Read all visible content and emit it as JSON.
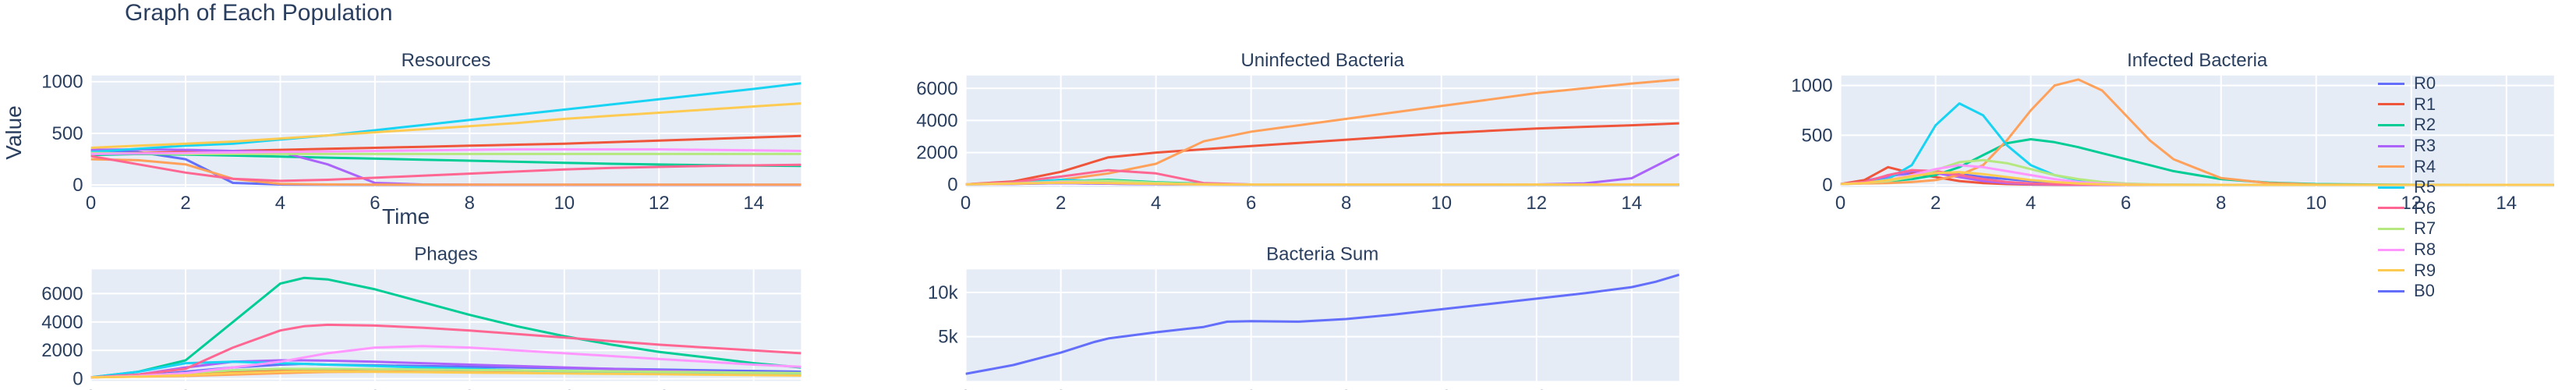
{
  "figure": {
    "title": "Graph of Each Population",
    "ylabel": "Value",
    "xlabel": "Time"
  },
  "legend": [
    {
      "name": "R0",
      "color": "#636efa"
    },
    {
      "name": "R1",
      "color": "#EF553B"
    },
    {
      "name": "R2",
      "color": "#00cc96"
    },
    {
      "name": "R3",
      "color": "#ab63fa"
    },
    {
      "name": "R4",
      "color": "#FFA15A"
    },
    {
      "name": "R5",
      "color": "#19d3f3"
    },
    {
      "name": "R6",
      "color": "#FF6692"
    },
    {
      "name": "R7",
      "color": "#B6E880"
    },
    {
      "name": "R8",
      "color": "#FF97FF"
    },
    {
      "name": "R9",
      "color": "#FECB52"
    },
    {
      "name": "B0",
      "color": "#636efa"
    }
  ],
  "chart_data": [
    {
      "type": "line",
      "title": "Resources",
      "xlim": [
        0,
        15
      ],
      "ylim": [
        -20,
        1060
      ],
      "xticks": [
        0,
        2,
        4,
        6,
        8,
        10,
        12,
        14
      ],
      "yticks": [
        0,
        500,
        1000
      ],
      "ytick_labels": [
        "0",
        "500",
        "1000"
      ],
      "x": [
        0,
        1,
        2,
        3,
        4,
        5,
        6,
        7,
        8,
        9,
        10,
        11,
        12,
        13,
        14,
        15
      ],
      "series": [
        {
          "color": "#636efa",
          "values": [
            330,
            320,
            250,
            20,
            5,
            3,
            2,
            2,
            2,
            2,
            2,
            2,
            2,
            2,
            2,
            2
          ]
        },
        {
          "color": "#EF553B",
          "values": [
            300,
            310,
            320,
            330,
            340,
            350,
            360,
            370,
            380,
            390,
            400,
            415,
            430,
            445,
            460,
            475
          ]
        },
        {
          "color": "#00cc96",
          "values": [
            290,
            300,
            295,
            285,
            275,
            265,
            255,
            245,
            235,
            225,
            215,
            205,
            198,
            192,
            188,
            185
          ]
        },
        {
          "color": "#ab63fa",
          "values": [
            340,
            345,
            340,
            330,
            320,
            200,
            20,
            5,
            3,
            2,
            2,
            2,
            2,
            2,
            2,
            2
          ]
        },
        {
          "color": "#FFA15A",
          "values": [
            250,
            240,
            200,
            60,
            10,
            5,
            3,
            3,
            3,
            3,
            3,
            3,
            3,
            3,
            3,
            3
          ]
        },
        {
          "color": "#19d3f3",
          "values": [
            320,
            350,
            380,
            400,
            440,
            480,
            530,
            580,
            630,
            680,
            730,
            780,
            830,
            880,
            930,
            985
          ]
        },
        {
          "color": "#FF6692",
          "values": [
            280,
            200,
            120,
            60,
            40,
            50,
            70,
            90,
            110,
            130,
            150,
            165,
            175,
            185,
            190,
            195
          ]
        },
        {
          "color": "#B6E880",
          "values": [
            310,
            305,
            300,
            300,
            300,
            300,
            300,
            300,
            300,
            300,
            300,
            300,
            300,
            300,
            300,
            300
          ]
        },
        {
          "color": "#FF97FF",
          "values": [
            300,
            305,
            310,
            315,
            320,
            325,
            330,
            335,
            340,
            345,
            345,
            345,
            345,
            340,
            335,
            330
          ]
        },
        {
          "color": "#FECB52",
          "values": [
            360,
            380,
            400,
            420,
            450,
            480,
            510,
            540,
            570,
            600,
            640,
            670,
            700,
            730,
            760,
            790
          ]
        }
      ]
    },
    {
      "type": "line",
      "title": "Uninfected Bacteria",
      "xlim": [
        0,
        15
      ],
      "ylim": [
        -150,
        6800
      ],
      "xticks": [
        0,
        2,
        4,
        6,
        8,
        10,
        12,
        14
      ],
      "yticks": [
        0,
        2000,
        4000,
        6000
      ],
      "ytick_labels": [
        "0",
        "2000",
        "4000",
        "6000"
      ],
      "x": [
        0,
        1,
        2,
        3,
        4,
        5,
        6,
        7,
        8,
        9,
        10,
        11,
        12,
        13,
        14,
        15
      ],
      "series": [
        {
          "color": "#636efa",
          "values": [
            20,
            50,
            100,
            60,
            20,
            10,
            5,
            5,
            5,
            5,
            5,
            5,
            5,
            5,
            5,
            5
          ]
        },
        {
          "color": "#EF553B",
          "values": [
            20,
            200,
            800,
            1700,
            2000,
            2200,
            2400,
            2600,
            2800,
            3000,
            3200,
            3350,
            3500,
            3600,
            3700,
            3820
          ]
        },
        {
          "color": "#00cc96",
          "values": [
            20,
            100,
            200,
            300,
            150,
            50,
            10,
            5,
            5,
            5,
            5,
            5,
            5,
            5,
            5,
            5
          ]
        },
        {
          "color": "#ab63fa",
          "values": [
            20,
            50,
            100,
            60,
            30,
            10,
            5,
            5,
            5,
            5,
            5,
            5,
            10,
            80,
            400,
            1900
          ]
        },
        {
          "color": "#FFA15A",
          "values": [
            20,
            100,
            300,
            700,
            1300,
            2700,
            3300,
            3700,
            4100,
            4500,
            4900,
            5300,
            5700,
            6000,
            6300,
            6550
          ]
        },
        {
          "color": "#19d3f3",
          "values": [
            20,
            100,
            300,
            200,
            50,
            10,
            5,
            5,
            5,
            5,
            5,
            5,
            5,
            5,
            5,
            5
          ]
        },
        {
          "color": "#FF6692",
          "values": [
            20,
            150,
            500,
            900,
            700,
            100,
            10,
            5,
            5,
            5,
            5,
            5,
            5,
            5,
            5,
            5
          ]
        },
        {
          "color": "#B6E880",
          "values": [
            20,
            80,
            200,
            250,
            120,
            30,
            5,
            5,
            5,
            5,
            5,
            5,
            5,
            5,
            5,
            5
          ]
        },
        {
          "color": "#FF97FF",
          "values": [
            20,
            60,
            150,
            100,
            40,
            10,
            5,
            5,
            5,
            5,
            5,
            5,
            5,
            5,
            5,
            5
          ]
        },
        {
          "color": "#FECB52",
          "values": [
            20,
            60,
            120,
            100,
            50,
            10,
            5,
            5,
            5,
            5,
            5,
            5,
            5,
            5,
            5,
            5
          ]
        }
      ]
    },
    {
      "type": "line",
      "title": "Infected Bacteria",
      "xlim": [
        0,
        15
      ],
      "ylim": [
        -20,
        1100
      ],
      "xticks": [
        0,
        2,
        4,
        6,
        8,
        10,
        12,
        14
      ],
      "yticks": [
        0,
        500,
        1000
      ],
      "ytick_labels": [
        "0",
        "500",
        "1000"
      ],
      "x": [
        0,
        0.5,
        1,
        1.5,
        2,
        2.5,
        3,
        3.5,
        4,
        4.5,
        5,
        5.5,
        6,
        6.5,
        7,
        8,
        9,
        10,
        12,
        15
      ],
      "series": [
        {
          "color": "#636efa",
          "values": [
            10,
            40,
            90,
            120,
            130,
            110,
            80,
            60,
            40,
            20,
            10,
            5,
            3,
            2,
            2,
            2,
            2,
            2,
            2,
            2
          ]
        },
        {
          "color": "#EF553B",
          "values": [
            10,
            50,
            180,
            120,
            80,
            40,
            20,
            10,
            5,
            3,
            2,
            2,
            2,
            2,
            2,
            2,
            2,
            2,
            2,
            2
          ]
        },
        {
          "color": "#00cc96",
          "values": [
            10,
            20,
            40,
            60,
            100,
            180,
            300,
            420,
            460,
            430,
            380,
            320,
            260,
            200,
            140,
            60,
            25,
            10,
            3,
            2
          ]
        },
        {
          "color": "#ab63fa",
          "values": [
            10,
            30,
            80,
            140,
            120,
            80,
            40,
            20,
            10,
            5,
            3,
            2,
            2,
            2,
            2,
            2,
            2,
            2,
            2,
            2
          ]
        },
        {
          "color": "#FFA15A",
          "values": [
            10,
            15,
            20,
            30,
            50,
            100,
            200,
            450,
            750,
            1000,
            1060,
            950,
            700,
            450,
            260,
            70,
            20,
            5,
            2,
            2
          ]
        },
        {
          "color": "#19d3f3",
          "values": [
            10,
            20,
            60,
            200,
            600,
            820,
            700,
            400,
            200,
            100,
            50,
            25,
            12,
            6,
            4,
            2,
            2,
            2,
            2,
            2
          ]
        },
        {
          "color": "#FF6692",
          "values": [
            10,
            30,
            100,
            150,
            140,
            100,
            60,
            30,
            15,
            8,
            4,
            3,
            2,
            2,
            2,
            2,
            2,
            2,
            2,
            2
          ]
        },
        {
          "color": "#B6E880",
          "values": [
            10,
            20,
            40,
            80,
            150,
            230,
            250,
            220,
            160,
            100,
            60,
            30,
            15,
            8,
            5,
            2,
            2,
            2,
            2,
            2
          ]
        },
        {
          "color": "#FF97FF",
          "values": [
            10,
            20,
            50,
            100,
            160,
            200,
            180,
            140,
            100,
            60,
            30,
            15,
            8,
            4,
            3,
            2,
            2,
            2,
            2,
            2
          ]
        },
        {
          "color": "#FECB52",
          "values": [
            10,
            20,
            50,
            90,
            120,
            130,
            110,
            80,
            50,
            30,
            15,
            8,
            4,
            3,
            2,
            2,
            2,
            2,
            2,
            2
          ]
        }
      ]
    },
    {
      "type": "line",
      "title": "Phages",
      "xlim": [
        0,
        15
      ],
      "ylim": [
        -150,
        7700
      ],
      "xticks": [
        0,
        2,
        4,
        6,
        8,
        10,
        12,
        14
      ],
      "yticks": [
        0,
        2000,
        4000,
        6000
      ],
      "ytick_labels": [
        "0",
        "2000",
        "4000",
        "6000"
      ],
      "x": [
        0,
        1,
        2,
        3,
        4,
        4.5,
        5,
        6,
        7,
        8,
        9,
        10,
        11,
        12,
        13,
        14,
        15
      ],
      "series": [
        {
          "color": "#636efa",
          "values": [
            100,
            200,
            500,
            800,
            1000,
            1050,
            1000,
            950,
            900,
            850,
            800,
            750,
            700,
            650,
            600,
            550,
            500
          ]
        },
        {
          "color": "#EF553B",
          "values": [
            100,
            200,
            400,
            500,
            550,
            550,
            540,
            520,
            500,
            480,
            460,
            440,
            420,
            400,
            380,
            360,
            340
          ]
        },
        {
          "color": "#00cc96",
          "values": [
            100,
            500,
            1300,
            4000,
            6700,
            7100,
            7000,
            6300,
            5400,
            4500,
            3700,
            3000,
            2400,
            1900,
            1500,
            1100,
            800
          ]
        },
        {
          "color": "#ab63fa",
          "values": [
            100,
            300,
            800,
            1200,
            1300,
            1300,
            1280,
            1200,
            1100,
            1000,
            900,
            800,
            700,
            600,
            500,
            420,
            350
          ]
        },
        {
          "color": "#FFA15A",
          "values": [
            100,
            150,
            200,
            300,
            400,
            450,
            480,
            500,
            480,
            450,
            420,
            400,
            380,
            360,
            340,
            320,
            300
          ]
        },
        {
          "color": "#19d3f3",
          "values": [
            100,
            500,
            1100,
            1200,
            1100,
            1050,
            1000,
            900,
            800,
            700,
            600,
            520,
            450,
            400,
            350,
            300,
            250
          ]
        },
        {
          "color": "#FF6692",
          "values": [
            100,
            300,
            700,
            2200,
            3400,
            3700,
            3800,
            3750,
            3600,
            3400,
            3150,
            2900,
            2650,
            2400,
            2200,
            2000,
            1800
          ]
        },
        {
          "color": "#B6E880",
          "values": [
            100,
            200,
            400,
            600,
            700,
            700,
            700,
            680,
            650,
            620,
            590,
            560,
            530,
            500,
            470,
            440,
            410
          ]
        },
        {
          "color": "#FF97FF",
          "values": [
            100,
            200,
            400,
            800,
            1200,
            1500,
            1800,
            2200,
            2300,
            2200,
            2000,
            1800,
            1600,
            1400,
            1200,
            1000,
            850
          ]
        },
        {
          "color": "#FECB52",
          "values": [
            100,
            150,
            250,
            400,
            500,
            520,
            520,
            500,
            470,
            440,
            410,
            380,
            350,
            320,
            290,
            260,
            230
          ]
        }
      ]
    },
    {
      "type": "line",
      "title": "Bacteria Sum",
      "xlim": [
        0,
        15
      ],
      "ylim": [
        0,
        12600
      ],
      "xticks": [
        0,
        2,
        4,
        6,
        8,
        10,
        12,
        14
      ],
      "yticks": [
        5000,
        10000
      ],
      "ytick_labels": [
        "5k",
        "10k"
      ],
      "x": [
        0,
        1,
        2,
        2.7,
        3,
        4,
        5,
        5.5,
        6,
        7,
        8,
        9,
        10,
        11,
        12,
        13,
        14,
        14.5,
        15
      ],
      "series": [
        {
          "color": "#636efa",
          "values": [
            800,
            1800,
            3200,
            4400,
            4800,
            5500,
            6100,
            6700,
            6750,
            6700,
            7000,
            7500,
            8100,
            8700,
            9300,
            9900,
            10600,
            11200,
            12000
          ]
        }
      ]
    }
  ]
}
